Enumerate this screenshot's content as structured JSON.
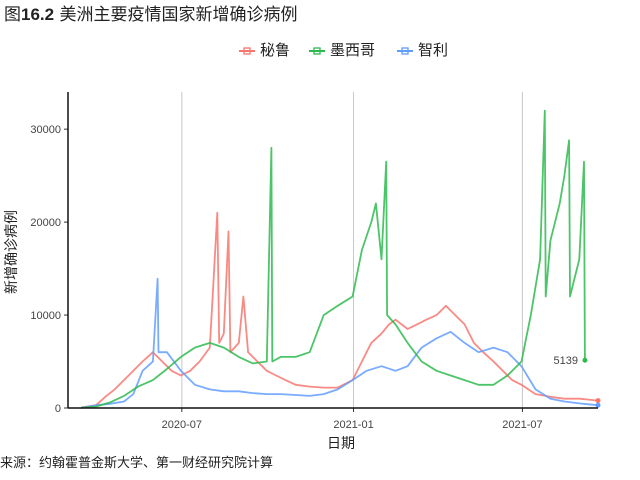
{
  "figure": {
    "title_prefix": "图",
    "title_number": "16.2",
    "title_text": " 美洲主要疫情国家新增确诊病例",
    "source": "来源：约翰霍普金斯大学、第一财经研究院计算"
  },
  "chart_data": {
    "type": "line",
    "xlabel": "日期",
    "ylabel": "新增确诊病例",
    "x_range": [
      "2020-03-01",
      "2021-09-20"
    ],
    "ylim": [
      0,
      34000
    ],
    "x_ticks": [
      "2020-07",
      "2021-01",
      "2021-07"
    ],
    "y_ticks": [
      0,
      10000,
      20000,
      30000
    ],
    "grid": "vertical major gridlines at x ticks",
    "legend_position": "top",
    "annotation": {
      "text": "5139",
      "x": "2021-09-05",
      "y": 5139,
      "series": "墨西哥"
    },
    "series": [
      {
        "name": "秘鲁",
        "color": "#F8766D",
        "points": [
          [
            "2020-03-15",
            50
          ],
          [
            "2020-03-31",
            300
          ],
          [
            "2020-04-10",
            1200
          ],
          [
            "2020-04-20",
            2000
          ],
          [
            "2020-04-30",
            3000
          ],
          [
            "2020-05-10",
            4000
          ],
          [
            "2020-05-20",
            5000
          ],
          [
            "2020-05-31",
            6000
          ],
          [
            "2020-06-10",
            5000
          ],
          [
            "2020-06-20",
            4000
          ],
          [
            "2020-06-30",
            3500
          ],
          [
            "2020-07-10",
            4000
          ],
          [
            "2020-07-20",
            5000
          ],
          [
            "2020-07-31",
            6500
          ],
          [
            "2020-08-08",
            21000
          ],
          [
            "2020-08-10",
            7000
          ],
          [
            "2020-08-15",
            8000
          ],
          [
            "2020-08-20",
            19000
          ],
          [
            "2020-08-22",
            6000
          ],
          [
            "2020-08-31",
            7000
          ],
          [
            "2020-09-05",
            12000
          ],
          [
            "2020-09-10",
            6000
          ],
          [
            "2020-09-20",
            5000
          ],
          [
            "2020-09-30",
            4000
          ],
          [
            "2020-10-10",
            3500
          ],
          [
            "2020-10-20",
            3000
          ],
          [
            "2020-10-31",
            2500
          ],
          [
            "2020-11-15",
            2300
          ],
          [
            "2020-11-30",
            2200
          ],
          [
            "2020-12-15",
            2200
          ],
          [
            "2020-12-31",
            3000
          ],
          [
            "2021-01-10",
            5000
          ],
          [
            "2021-01-20",
            7000
          ],
          [
            "2021-01-31",
            8000
          ],
          [
            "2021-02-08",
            9000
          ],
          [
            "2021-02-15",
            9500
          ],
          [
            "2021-02-28",
            8500
          ],
          [
            "2021-03-10",
            9000
          ],
          [
            "2021-03-20",
            9500
          ],
          [
            "2021-03-31",
            10000
          ],
          [
            "2021-04-10",
            11000
          ],
          [
            "2021-04-20",
            10000
          ],
          [
            "2021-04-30",
            9000
          ],
          [
            "2021-05-10",
            7000
          ],
          [
            "2021-05-20",
            6000
          ],
          [
            "2021-05-31",
            5000
          ],
          [
            "2021-06-10",
            4000
          ],
          [
            "2021-06-20",
            3000
          ],
          [
            "2021-06-30",
            2500
          ],
          [
            "2021-07-15",
            1500
          ],
          [
            "2021-07-31",
            1200
          ],
          [
            "2021-08-15",
            1000
          ],
          [
            "2021-08-31",
            1000
          ],
          [
            "2021-09-10",
            900
          ],
          [
            "2021-09-20",
            800
          ]
        ]
      },
      {
        "name": "墨西哥",
        "color": "#2DBA4E",
        "points": [
          [
            "2020-03-15",
            20
          ],
          [
            "2020-03-31",
            150
          ],
          [
            "2020-04-15",
            600
          ],
          [
            "2020-04-30",
            1300
          ],
          [
            "2020-05-15",
            2300
          ],
          [
            "2020-05-31",
            3000
          ],
          [
            "2020-06-15",
            4200
          ],
          [
            "2020-06-30",
            5500
          ],
          [
            "2020-07-15",
            6500
          ],
          [
            "2020-07-31",
            7000
          ],
          [
            "2020-08-15",
            6500
          ],
          [
            "2020-08-31",
            5500
          ],
          [
            "2020-09-15",
            4800
          ],
          [
            "2020-09-30",
            5000
          ],
          [
            "2020-10-05",
            28000
          ],
          [
            "2020-10-06",
            5000
          ],
          [
            "2020-10-15",
            5500
          ],
          [
            "2020-10-31",
            5500
          ],
          [
            "2020-11-15",
            6000
          ],
          [
            "2020-11-30",
            10000
          ],
          [
            "2020-12-15",
            11000
          ],
          [
            "2020-12-31",
            12000
          ],
          [
            "2021-01-10",
            17000
          ],
          [
            "2021-01-20",
            20000
          ],
          [
            "2021-01-25",
            22000
          ],
          [
            "2021-01-31",
            16000
          ],
          [
            "2021-02-05",
            26500
          ],
          [
            "2021-02-06",
            10000
          ],
          [
            "2021-02-15",
            9000
          ],
          [
            "2021-02-28",
            7000
          ],
          [
            "2021-03-15",
            5000
          ],
          [
            "2021-03-31",
            4000
          ],
          [
            "2021-04-15",
            3500
          ],
          [
            "2021-04-30",
            3000
          ],
          [
            "2021-05-15",
            2500
          ],
          [
            "2021-05-31",
            2500
          ],
          [
            "2021-06-15",
            3500
          ],
          [
            "2021-06-30",
            5000
          ],
          [
            "2021-07-10",
            10000
          ],
          [
            "2021-07-20",
            16000
          ],
          [
            "2021-07-25",
            32000
          ],
          [
            "2021-07-26",
            12000
          ],
          [
            "2021-07-31",
            18000
          ],
          [
            "2021-08-10",
            22000
          ],
          [
            "2021-08-15",
            25000
          ],
          [
            "2021-08-20",
            28800
          ],
          [
            "2021-08-21",
            12000
          ],
          [
            "2021-08-31",
            16000
          ],
          [
            "2021-09-05",
            26500
          ],
          [
            "2021-09-06",
            5139
          ]
        ]
      },
      {
        "name": "智利",
        "color": "#619CFF",
        "points": [
          [
            "2020-03-15",
            10
          ],
          [
            "2020-03-31",
            300
          ],
          [
            "2020-04-15",
            450
          ],
          [
            "2020-04-30",
            700
          ],
          [
            "2020-05-10",
            1500
          ],
          [
            "2020-05-20",
            4000
          ],
          [
            "2020-05-31",
            5000
          ],
          [
            "2020-06-05",
            13900
          ],
          [
            "2020-06-06",
            6000
          ],
          [
            "2020-06-15",
            6000
          ],
          [
            "2020-06-30",
            4000
          ],
          [
            "2020-07-15",
            2500
          ],
          [
            "2020-07-31",
            2000
          ],
          [
            "2020-08-15",
            1800
          ],
          [
            "2020-08-31",
            1800
          ],
          [
            "2020-09-15",
            1600
          ],
          [
            "2020-09-30",
            1500
          ],
          [
            "2020-10-15",
            1500
          ],
          [
            "2020-10-31",
            1400
          ],
          [
            "2020-11-15",
            1300
          ],
          [
            "2020-11-30",
            1500
          ],
          [
            "2020-12-15",
            2000
          ],
          [
            "2020-12-31",
            3000
          ],
          [
            "2021-01-15",
            4000
          ],
          [
            "2021-01-31",
            4500
          ],
          [
            "2021-02-15",
            4000
          ],
          [
            "2021-02-28",
            4500
          ],
          [
            "2021-03-15",
            6500
          ],
          [
            "2021-03-31",
            7500
          ],
          [
            "2021-04-15",
            8200
          ],
          [
            "2021-04-30",
            7000
          ],
          [
            "2021-05-15",
            6000
          ],
          [
            "2021-05-31",
            6500
          ],
          [
            "2021-06-15",
            6000
          ],
          [
            "2021-06-30",
            4500
          ],
          [
            "2021-07-15",
            2000
          ],
          [
            "2021-07-31",
            1000
          ],
          [
            "2021-08-15",
            700
          ],
          [
            "2021-08-31",
            500
          ],
          [
            "2021-09-10",
            400
          ],
          [
            "2021-09-20",
            300
          ]
        ]
      }
    ]
  }
}
